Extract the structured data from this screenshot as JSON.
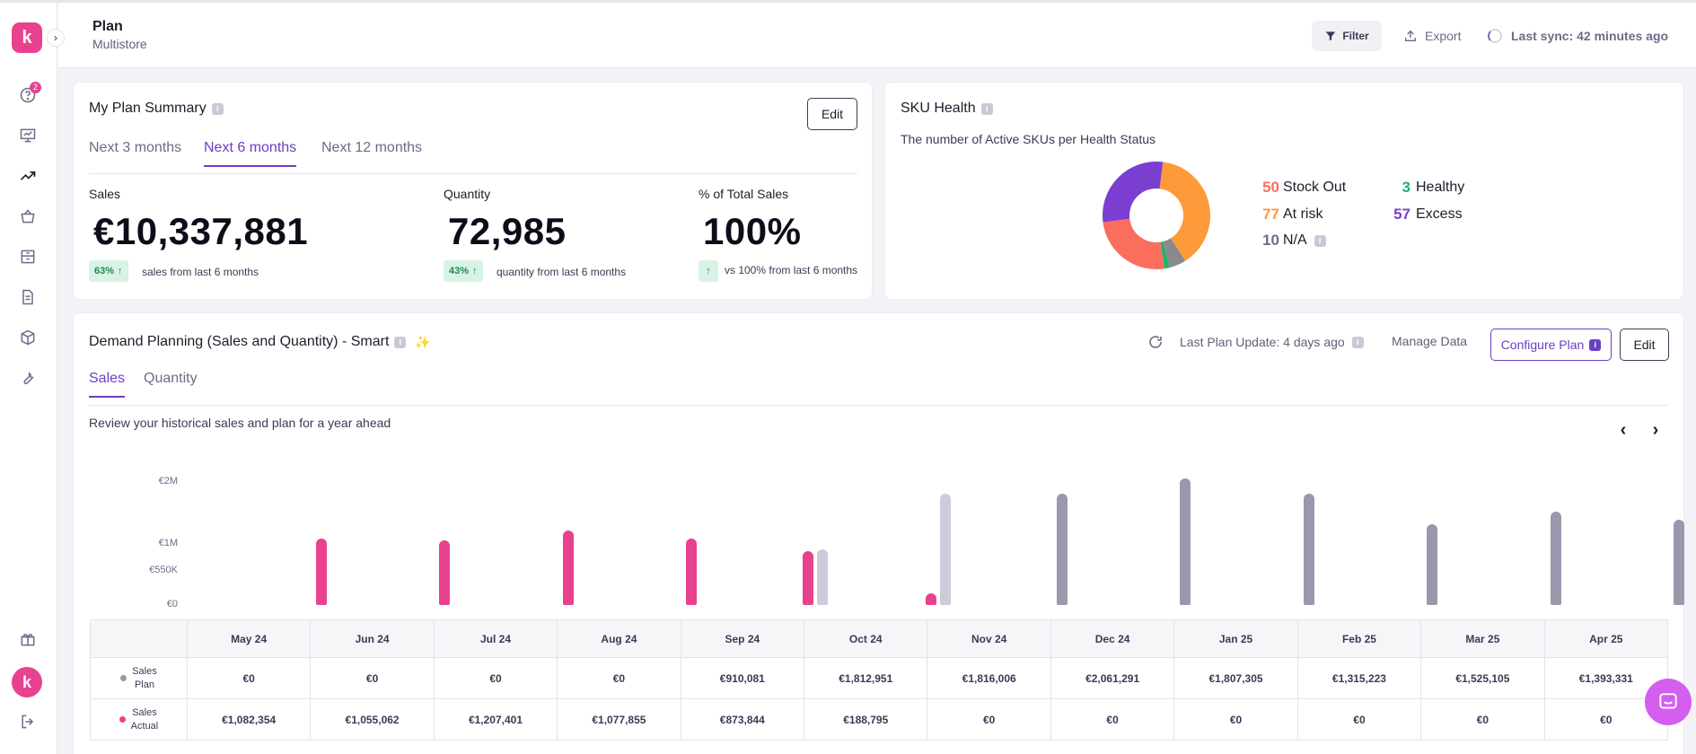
{
  "app": {
    "logo_letter": "k",
    "collapse_glyph": "›"
  },
  "sidebar": {
    "items": [
      {
        "name": "help-icon",
        "badge": "2"
      },
      {
        "name": "presentation-icon"
      },
      {
        "name": "trending-up-icon"
      },
      {
        "name": "basket-icon"
      },
      {
        "name": "inventory-icon"
      },
      {
        "name": "document-icon"
      },
      {
        "name": "box-icon"
      },
      {
        "name": "tools-icon"
      }
    ],
    "bottom": [
      {
        "name": "gift-icon"
      },
      {
        "name": "logout-icon"
      }
    ],
    "avatar_letter": "k"
  },
  "header": {
    "title": "Plan",
    "subtitle": "Multistore",
    "filter_label": "Filter",
    "export_label": "Export",
    "sync_label": "Last sync: 42 minutes ago"
  },
  "plan_summary": {
    "title": "My Plan Summary",
    "info": "i",
    "edit_label": "Edit",
    "tabs": [
      {
        "label": "Next 3 months",
        "active": false
      },
      {
        "label": "Next 6 months",
        "active": true
      },
      {
        "label": "Next 12 months",
        "active": false
      }
    ],
    "metrics": [
      {
        "label": "Sales",
        "value": "€10,337,881",
        "chip": "63%",
        "note": "sales from last 6 months"
      },
      {
        "label": "Quantity",
        "value": "72,985",
        "chip": "43%",
        "note": "quantity from last 6 months"
      },
      {
        "label": "% of Total Sales",
        "value": "100%",
        "chip": "",
        "note": "vs 100% from last 6 months"
      }
    ]
  },
  "sku_health": {
    "title": "SKU Health",
    "info": "i",
    "subtitle": "The number of Active SKUs per Health Status",
    "statuses": [
      {
        "count": "50",
        "label": "Stock Out",
        "color": "#fb6e5e",
        "value": 50
      },
      {
        "count": "77",
        "label": "At risk",
        "color": "#fe9a3a",
        "value": 77
      },
      {
        "count": "10",
        "label": "N/A",
        "color": "#8a8a8a",
        "value": 10
      },
      {
        "count": "3",
        "label": "Healthy",
        "color": "#1fb36b",
        "value": 3
      },
      {
        "count": "57",
        "label": "Excess",
        "color": "#7a3fd0",
        "value": 57
      }
    ]
  },
  "demand": {
    "title": "Demand Planning (Sales and Quantity) - Smart",
    "info": "i",
    "sparkle": "✨",
    "last_update": "Last Plan Update: 4 days ago",
    "manage_label": "Manage Data",
    "configure_label": "Configure Plan",
    "edit_label": "Edit",
    "tabs": [
      {
        "label": "Sales",
        "active": true
      },
      {
        "label": "Quantity",
        "active": false
      }
    ],
    "description": "Review your historical sales and plan for a year ahead",
    "prev_glyph": "‹",
    "next_glyph": "›",
    "row_labels": {
      "plan": "Sales\nPlan",
      "actual": "Sales\nActual"
    },
    "colors": {
      "plan": "#9c97ad",
      "plan_light": "#cfcadb",
      "actual": "#e8418e"
    }
  },
  "chart_data": {
    "type": "bar",
    "yticks": [
      {
        "label": "€2M",
        "value": 2000000
      },
      {
        "label": "€1M",
        "value": 1000000
      },
      {
        "label": "€550K",
        "value": 550000
      },
      {
        "label": "€0",
        "value": 0
      }
    ],
    "ylim": [
      0,
      2100000
    ],
    "categories": [
      "May 24",
      "Jun 24",
      "Jul 24",
      "Aug 24",
      "Sep 24",
      "Oct 24",
      "Nov 24",
      "Dec 24",
      "Jan 25",
      "Feb 25",
      "Mar 25",
      "Apr 25"
    ],
    "series": [
      {
        "name": "Sales Plan",
        "values": [
          0,
          0,
          0,
          0,
          910081,
          1812951,
          1816006,
          2061291,
          1807305,
          1315223,
          1525105,
          1393331
        ],
        "labels": [
          "€0",
          "€0",
          "€0",
          "€0",
          "€910,081",
          "€1,812,951",
          "€1,816,006",
          "€2,061,291",
          "€1,807,305",
          "€1,315,223",
          "€1,525,105",
          "€1,393,331"
        ]
      },
      {
        "name": "Sales Actual",
        "values": [
          1082354,
          1055062,
          1207401,
          1077855,
          873844,
          188795,
          0,
          0,
          0,
          0,
          0,
          0
        ],
        "labels": [
          "€1,082,354",
          "€1,055,062",
          "€1,207,401",
          "€1,077,855",
          "€873,844",
          "€188,795",
          "€0",
          "€0",
          "€0",
          "€0",
          "€0",
          "€0"
        ]
      }
    ]
  }
}
